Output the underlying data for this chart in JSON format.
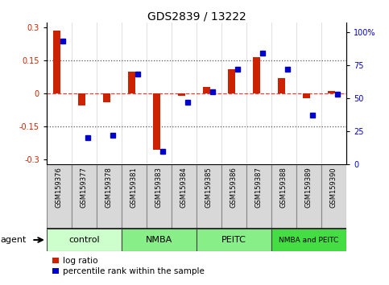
{
  "title": "GDS2839 / 13222",
  "samples": [
    "GSM159376",
    "GSM159377",
    "GSM159378",
    "GSM159381",
    "GSM159383",
    "GSM159384",
    "GSM159385",
    "GSM159386",
    "GSM159387",
    "GSM159388",
    "GSM159389",
    "GSM159390"
  ],
  "log_ratio": [
    0.285,
    -0.055,
    -0.04,
    0.1,
    -0.255,
    -0.01,
    0.03,
    0.11,
    0.165,
    0.07,
    -0.02,
    0.01
  ],
  "percentile_rank": [
    93,
    20,
    22,
    68,
    10,
    47,
    55,
    72,
    84,
    72,
    37,
    53
  ],
  "group_labels": [
    "control",
    "NMBA",
    "PEITC",
    "NMBA and PEITC"
  ],
  "group_starts": [
    0,
    3,
    6,
    9
  ],
  "group_ends": [
    2,
    5,
    8,
    11
  ],
  "group_colors": [
    "#ccffcc",
    "#88ee88",
    "#88ee88",
    "#44dd44"
  ],
  "ylim_left": [
    -0.32,
    0.32
  ],
  "ylim_right": [
    0,
    107
  ],
  "yticks_left": [
    -0.3,
    -0.15,
    0,
    0.15,
    0.3
  ],
  "ytick_labels_left": [
    "-0.3",
    "-0.15",
    "0",
    "0.15",
    "0.3"
  ],
  "yticks_right": [
    0,
    25,
    50,
    75,
    100
  ],
  "ytick_labels_right": [
    "0",
    "25",
    "50",
    "75",
    "100%"
  ],
  "bar_color_red": "#cc2200",
  "bar_color_blue": "#0000cc",
  "dashed_line_color": "#dd4444",
  "dotted_line_color": "#555555",
  "agent_label": "agent",
  "legend_log_ratio": "log ratio",
  "legend_percentile": "percentile rank within the sample",
  "sample_box_color": "#d8d8d8",
  "xlim": [
    -0.5,
    11.5
  ]
}
